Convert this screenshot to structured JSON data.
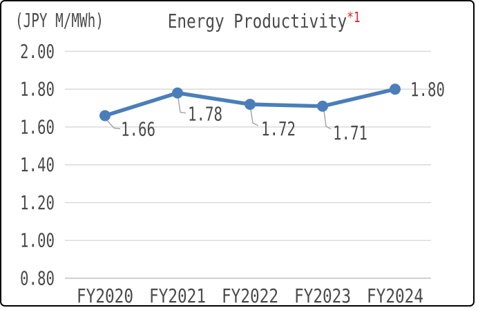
{
  "frame": {
    "background_color": "#ffffff",
    "border_color": "#000000"
  },
  "header": {
    "unit_label": "(JPY M/MWh)",
    "title": "Energy Productivity",
    "title_superscript": "*1",
    "title_color": "#4a4a4a",
    "superscript_color": "#ed1c24"
  },
  "chart_data": {
    "type": "line",
    "title": "Energy Productivity*1",
    "unit_label": "(JPY M/MWh)",
    "categories": [
      "FY2020",
      "FY2021",
      "FY2022",
      "FY2023",
      "FY2024"
    ],
    "series": [
      {
        "name": "Energy Productivity",
        "values": [
          1.66,
          1.78,
          1.72,
          1.71,
          1.8
        ]
      }
    ],
    "data_labels": [
      "1.66",
      "1.78",
      "1.72",
      "1.71",
      "1.80"
    ],
    "y_ticks": [
      "2.00",
      "1.80",
      "1.60",
      "1.40",
      "1.20",
      "1.00",
      "0.80"
    ],
    "ylim": [
      0.8,
      2.0
    ],
    "y_tick_step": 0.2,
    "grid": true,
    "legend": "none",
    "line_color": "#4A7EBB",
    "marker_color": "#4A7EBB",
    "gridline_color": "#d6d6d6",
    "axis_line_color": "#b5b5b5",
    "leader_line_color": "#a0a0a0",
    "text_color": "#4a4a4a"
  }
}
